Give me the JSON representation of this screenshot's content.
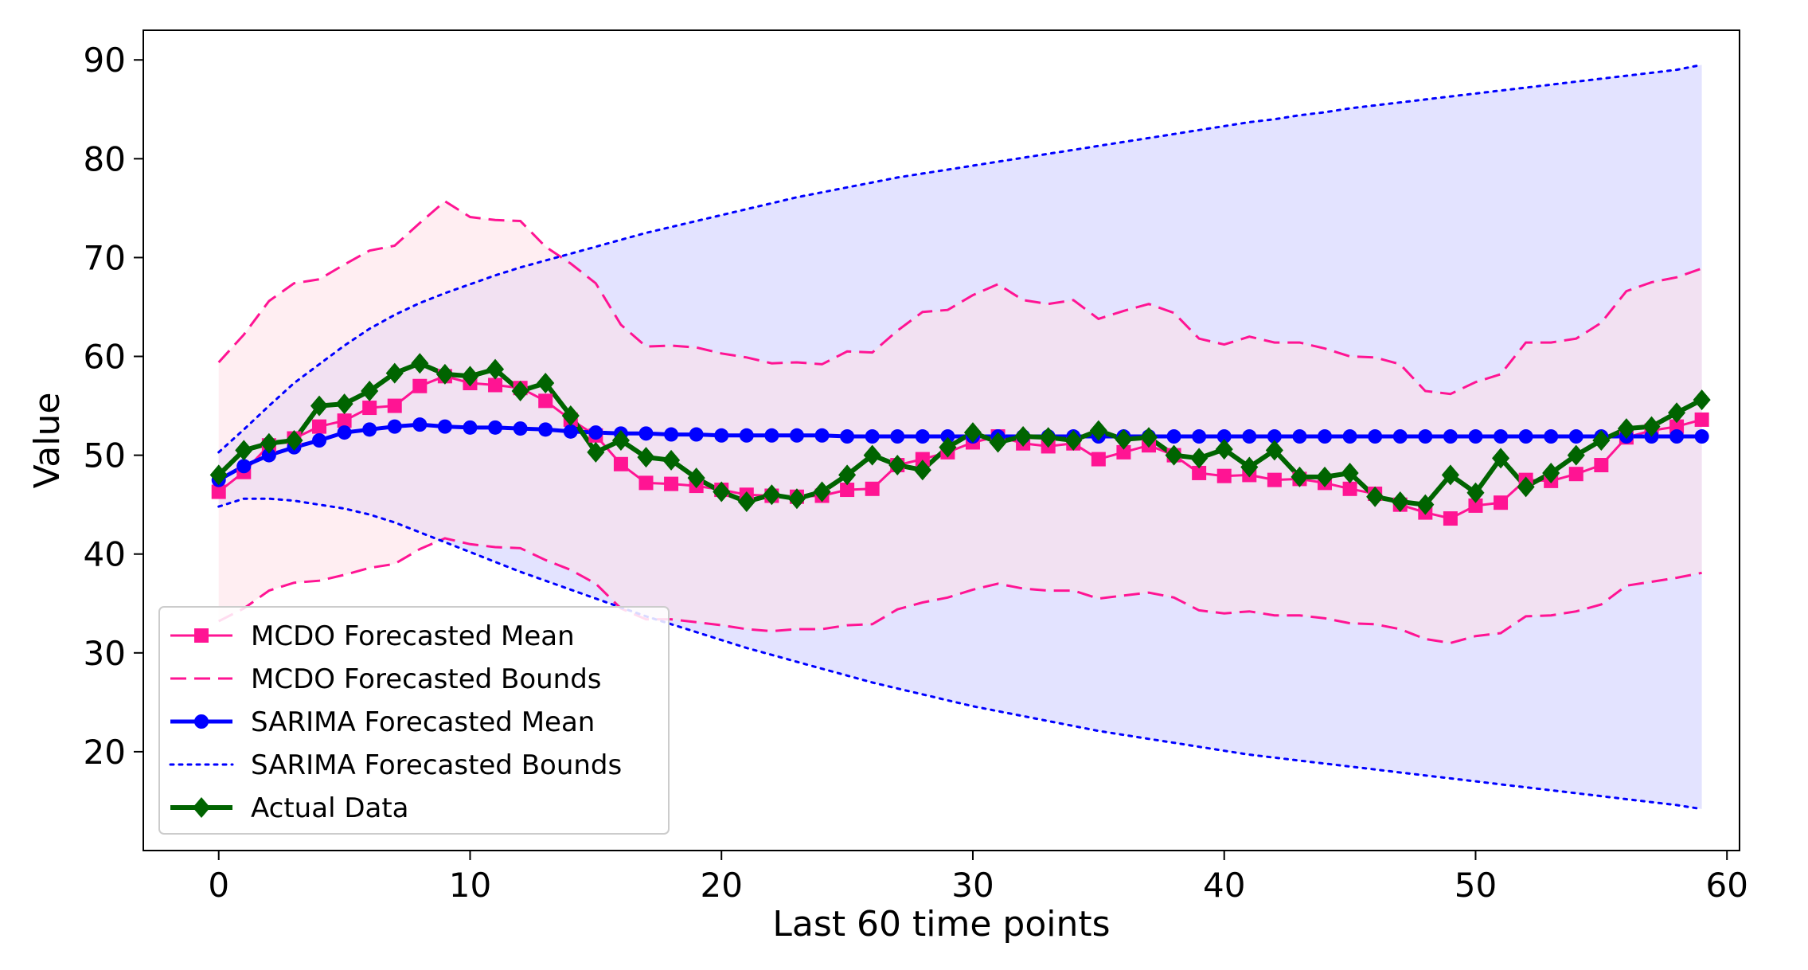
{
  "chart_data": {
    "type": "line",
    "title": "",
    "xlabel": "Last 60 time points",
    "ylabel": "Value",
    "xlim": [
      -3,
      60.5
    ],
    "ylim": [
      10,
      93
    ],
    "xticks": [
      0,
      10,
      20,
      30,
      40,
      50,
      60
    ],
    "yticks": [
      20,
      30,
      40,
      50,
      60,
      70,
      80,
      90
    ],
    "xtick_labels": [
      "0",
      "10",
      "20",
      "30",
      "40",
      "50",
      "60"
    ],
    "ytick_labels": [
      "20",
      "30",
      "40",
      "50",
      "60",
      "70",
      "80",
      "90"
    ],
    "grid": false,
    "legend_position": "lower-left",
    "x": [
      0,
      1,
      2,
      3,
      4,
      5,
      6,
      7,
      8,
      9,
      10,
      11,
      12,
      13,
      14,
      15,
      16,
      17,
      18,
      19,
      20,
      21,
      22,
      23,
      24,
      25,
      26,
      27,
      28,
      29,
      30,
      31,
      32,
      33,
      34,
      35,
      36,
      37,
      38,
      39,
      40,
      41,
      42,
      43,
      44,
      45,
      46,
      47,
      48,
      49,
      50,
      51,
      52,
      53,
      54,
      55,
      56,
      57,
      58,
      59
    ],
    "series": [
      {
        "name": "MCDO Forecasted Mean",
        "role": "mean",
        "color": "#ff1493",
        "marker": "square",
        "values": [
          46.3,
          48.3,
          51.0,
          51.7,
          52.9,
          53.5,
          54.8,
          55.0,
          57.0,
          58.0,
          57.3,
          57.1,
          56.8,
          55.5,
          53.6,
          52.0,
          49.1,
          47.2,
          47.1,
          46.9,
          46.5,
          46.0,
          45.9,
          45.8,
          45.9,
          46.5,
          46.6,
          49.0,
          49.6,
          50.3,
          51.3,
          51.9,
          51.2,
          50.9,
          51.2,
          49.6,
          50.3,
          51.0,
          50.0,
          48.2,
          47.9,
          48.0,
          47.5,
          47.6,
          47.2,
          46.6,
          46.1,
          45.0,
          44.2,
          43.6,
          44.9,
          45.2,
          47.5,
          47.4,
          48.1,
          49.0,
          51.8,
          52.5,
          52.9,
          53.6
        ]
      },
      {
        "name": "MCDO Forecasted Bounds",
        "role": "bounds",
        "color": "#ff1493",
        "style": "dashed",
        "fill": "#ffe0e8",
        "upper": [
          59.4,
          62.2,
          65.6,
          67.4,
          67.8,
          69.3,
          70.7,
          71.2,
          73.5,
          75.7,
          74.1,
          73.8,
          73.7,
          71.1,
          69.4,
          67.4,
          63.2,
          61.0,
          61.1,
          60.9,
          60.3,
          59.9,
          59.3,
          59.4,
          59.2,
          60.5,
          60.4,
          62.6,
          64.5,
          64.7,
          66.2,
          67.3,
          65.7,
          65.3,
          65.7,
          63.8,
          64.6,
          65.3,
          64.4,
          61.8,
          61.2,
          62.0,
          61.4,
          61.4,
          60.8,
          60.0,
          59.9,
          59.2,
          56.5,
          56.2,
          57.4,
          58.2,
          61.4,
          61.4,
          61.8,
          63.4,
          66.6,
          67.5,
          68.0,
          68.9
        ],
        "lower": [
          33.2,
          34.5,
          36.3,
          37.1,
          37.3,
          37.9,
          38.6,
          39.0,
          40.5,
          41.6,
          41.0,
          40.7,
          40.6,
          39.4,
          38.4,
          37.0,
          34.5,
          33.4,
          33.4,
          33.1,
          32.8,
          32.4,
          32.2,
          32.4,
          32.4,
          32.8,
          32.9,
          34.4,
          35.1,
          35.6,
          36.4,
          37.0,
          36.5,
          36.3,
          36.3,
          35.5,
          35.8,
          36.1,
          35.6,
          34.3,
          34.0,
          34.2,
          33.8,
          33.8,
          33.5,
          33.0,
          32.9,
          32.4,
          31.4,
          31.0,
          31.7,
          32.0,
          33.7,
          33.8,
          34.2,
          34.9,
          36.8,
          37.2,
          37.6,
          38.1
        ]
      },
      {
        "name": "SARIMA Forecasted Mean",
        "role": "mean",
        "color": "#0000ff",
        "marker": "circle",
        "values": [
          47.5,
          48.9,
          50.0,
          50.8,
          51.5,
          52.3,
          52.6,
          52.9,
          53.1,
          52.9,
          52.8,
          52.8,
          52.7,
          52.6,
          52.4,
          52.3,
          52.2,
          52.2,
          52.1,
          52.1,
          52.0,
          52.0,
          52.0,
          52.0,
          52.0,
          51.9,
          51.9,
          51.9,
          51.9,
          51.9,
          51.9,
          51.9,
          51.9,
          51.9,
          51.9,
          51.9,
          51.9,
          51.9,
          51.9,
          51.9,
          51.9,
          51.9,
          51.9,
          51.9,
          51.9,
          51.9,
          51.9,
          51.9,
          51.9,
          51.9,
          51.9,
          51.9,
          51.9,
          51.9,
          51.9,
          51.9,
          51.9,
          51.9,
          51.9,
          51.9
        ]
      },
      {
        "name": "SARIMA Forecasted Bounds",
        "role": "bounds",
        "color": "#0000ff",
        "style": "dotted",
        "fill": "#e0e0ff",
        "upper": [
          50.3,
          52.6,
          55.0,
          57.3,
          59.2,
          61.1,
          62.8,
          64.2,
          65.4,
          66.4,
          67.3,
          68.2,
          69.0,
          69.7,
          70.4,
          71.1,
          71.8,
          72.5,
          73.1,
          73.7,
          74.3,
          74.9,
          75.5,
          76.1,
          76.6,
          77.1,
          77.6,
          78.1,
          78.5,
          78.9,
          79.3,
          79.7,
          80.1,
          80.5,
          80.9,
          81.3,
          81.7,
          82.1,
          82.5,
          82.9,
          83.3,
          83.7,
          84.0,
          84.4,
          84.7,
          85.1,
          85.4,
          85.7,
          86.0,
          86.3,
          86.6,
          86.9,
          87.2,
          87.5,
          87.8,
          88.1,
          88.4,
          88.7,
          89.0,
          89.5
        ],
        "lower": [
          44.8,
          45.6,
          45.6,
          45.4,
          45.0,
          44.6,
          44.0,
          43.2,
          42.2,
          41.2,
          40.2,
          39.2,
          38.2,
          37.3,
          36.4,
          35.5,
          34.6,
          33.7,
          32.9,
          32.1,
          31.3,
          30.5,
          29.8,
          29.1,
          28.4,
          27.7,
          27.0,
          26.4,
          25.8,
          25.2,
          24.6,
          24.1,
          23.6,
          23.1,
          22.6,
          22.1,
          21.7,
          21.3,
          20.9,
          20.5,
          20.1,
          19.7,
          19.4,
          19.1,
          18.8,
          18.5,
          18.2,
          17.9,
          17.6,
          17.3,
          17.0,
          16.7,
          16.4,
          16.1,
          15.8,
          15.5,
          15.2,
          14.9,
          14.6,
          14.2
        ]
      },
      {
        "name": "Actual Data",
        "role": "actual",
        "color": "#006400",
        "marker": "diamond",
        "values": [
          48.0,
          50.5,
          51.2,
          51.5,
          55.0,
          55.2,
          56.5,
          58.3,
          59.3,
          58.2,
          58.0,
          58.7,
          56.5,
          57.3,
          54.0,
          50.3,
          51.5,
          49.8,
          49.5,
          47.7,
          46.3,
          45.3,
          46.0,
          45.6,
          46.3,
          48.0,
          50.0,
          49.0,
          48.5,
          50.8,
          52.3,
          51.3,
          51.9,
          51.8,
          51.5,
          52.5,
          51.6,
          51.8,
          50.0,
          49.7,
          50.6,
          48.8,
          50.5,
          47.8,
          47.8,
          48.2,
          45.8,
          45.3,
          45.0,
          48.0,
          46.2,
          49.7,
          46.8,
          48.2,
          50.0,
          51.5,
          52.7,
          52.9,
          54.3,
          55.6
        ]
      }
    ]
  }
}
